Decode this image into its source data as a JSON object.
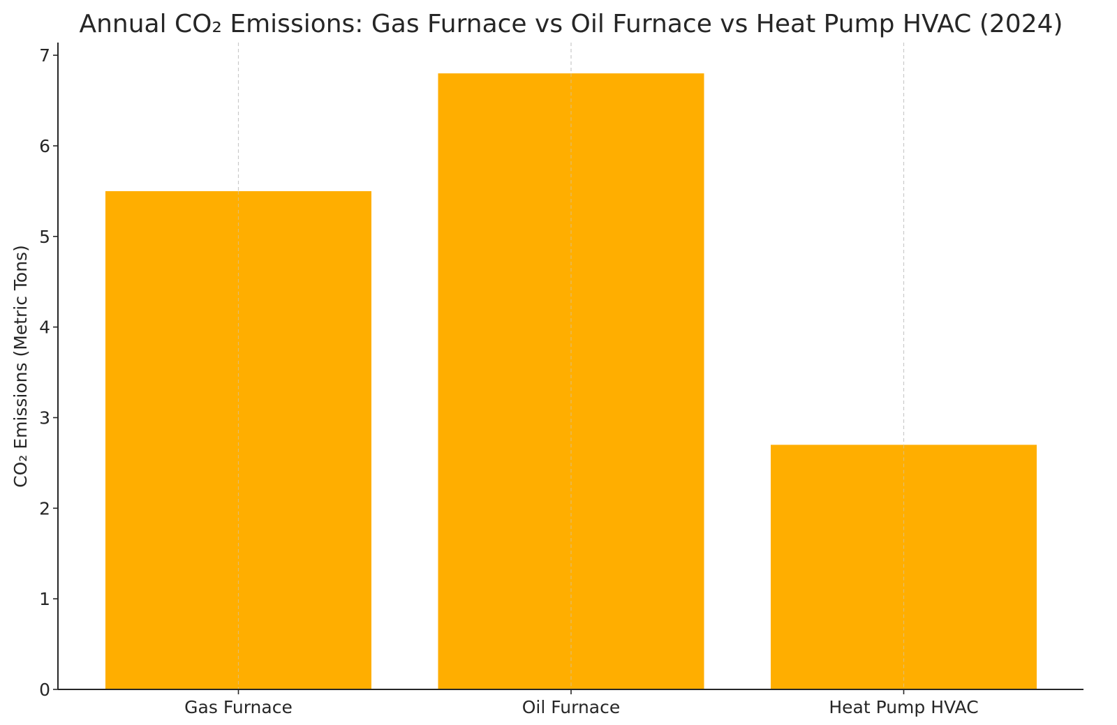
{
  "chart_data": {
    "type": "bar",
    "title": "Annual CO₂ Emissions: Gas Furnace vs Oil Furnace vs Heat Pump HVAC (2024)",
    "xlabel": "",
    "ylabel": "CO₂ Emissions (Metric Tons)",
    "categories": [
      "Gas Furnace",
      "Oil Furnace",
      "Heat Pump HVAC"
    ],
    "values": [
      5.5,
      6.8,
      2.7
    ],
    "ylim": [
      0,
      7.14
    ],
    "yticks": [
      0,
      1,
      2,
      3,
      4,
      5,
      6,
      7
    ],
    "bar_color": "#FFAE00",
    "grid": "x-axis only, dashed",
    "legend": "none"
  }
}
